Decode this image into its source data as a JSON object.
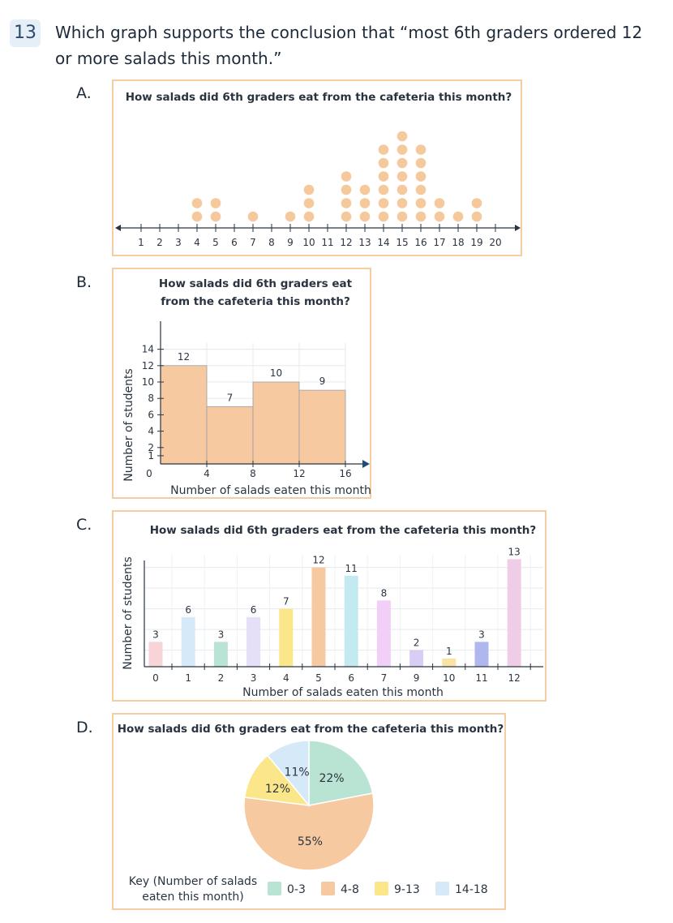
{
  "question": {
    "number": "13",
    "text": "Which graph supports the conclusion that “most 6th graders ordered 12 or more salads this month.”"
  },
  "options": [
    {
      "letter": "A.",
      "chart_data": {
        "type": "scatter",
        "subtype": "dot plot",
        "title": "How salads did 6th graders eat from the cafeteria this month?",
        "x": [
          1,
          2,
          3,
          4,
          5,
          6,
          7,
          8,
          9,
          10,
          11,
          12,
          13,
          14,
          15,
          16,
          17,
          18,
          19,
          20
        ],
        "counts": [
          0,
          0,
          0,
          2,
          2,
          0,
          1,
          0,
          1,
          3,
          0,
          4,
          3,
          6,
          7,
          6,
          2,
          1,
          2,
          0
        ],
        "xlim": [
          1,
          20
        ],
        "dot_color": "#f5c99c"
      }
    },
    {
      "letter": "B.",
      "chart_data": {
        "type": "bar",
        "subtype": "histogram",
        "title_lines": [
          "How salads did 6th graders eat",
          "from the cafeteria this month?"
        ],
        "bins": [
          [
            0,
            4
          ],
          [
            4,
            8
          ],
          [
            8,
            12
          ],
          [
            12,
            16
          ]
        ],
        "values": [
          12,
          7,
          10,
          9
        ],
        "xticks": [
          "0",
          "4",
          "8",
          "12",
          "16"
        ],
        "yticks": [
          "1",
          "2",
          "4",
          "6",
          "8",
          "10",
          "12",
          "14"
        ],
        "xlabel": "Number of salads eaten this month",
        "ylabel": "Number of students",
        "bar_color": "#f6c9a0"
      }
    },
    {
      "letter": "C.",
      "chart_data": {
        "type": "bar",
        "title": "How salads did 6th graders eat from the cafeteria this month?",
        "categories": [
          "0",
          "1",
          "2",
          "3",
          "4",
          "5",
          "6",
          "7",
          "9",
          "10",
          "11",
          "12"
        ],
        "values": [
          3,
          6,
          3,
          6,
          7,
          12,
          11,
          8,
          2,
          1,
          3,
          13
        ],
        "colors": [
          "#f8d3d8",
          "#d6e9f8",
          "#b9e3d3",
          "#e6dff8",
          "#fbe68a",
          "#f6c9a0",
          "#c3eaf0",
          "#f1cff6",
          "#d7cdf5",
          "#fbe3a6",
          "#aeb8ee",
          "#efcde6"
        ],
        "xlabel": "Number of salads eaten this month",
        "ylabel": "Number of students",
        "ylim": [
          0,
          14
        ]
      }
    },
    {
      "letter": "D.",
      "chart_data": {
        "type": "pie",
        "title": "How salads did 6th graders eat from the cafeteria this month?",
        "slices": [
          {
            "label": "0-3",
            "value": 22,
            "text": "22%",
            "color": "#b9e3d3"
          },
          {
            "label": "4-8",
            "value": 55,
            "text": "55%",
            "color": "#f6c9a0"
          },
          {
            "label": "9-13",
            "value": 12,
            "text": "12%",
            "color": "#fbe68a"
          },
          {
            "label": "14-18",
            "value": 11,
            "text": "11%",
            "color": "#d6e9f8"
          }
        ],
        "key_title_lines": [
          "Key (Number of salads",
          "eaten this month)"
        ]
      }
    }
  ]
}
